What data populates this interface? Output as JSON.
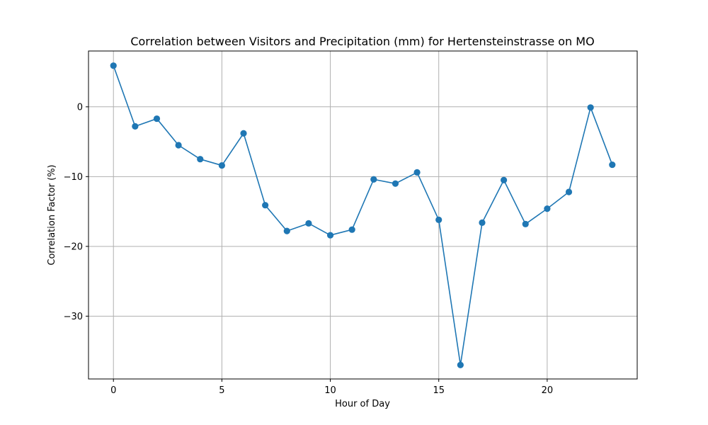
{
  "chart_data": {
    "type": "line",
    "title": "Correlation between Visitors and Precipitation (mm) for Hertensteinstrasse on MO",
    "xlabel": "Hour of Day",
    "ylabel": "Correlation Factor (%)",
    "xlim": [
      -1.15,
      24.15
    ],
    "ylim": [
      -39,
      8
    ],
    "xticks": [
      0,
      5,
      10,
      15,
      20
    ],
    "yticks": [
      -30,
      -20,
      -10,
      0
    ],
    "ytick_labels": [
      "−30",
      "−20",
      "−10",
      "0"
    ],
    "grid": true,
    "line_color": "#1f77b4",
    "series": [
      {
        "x": [
          0,
          1,
          2,
          3,
          4,
          5,
          6,
          7,
          8,
          9,
          10,
          11,
          12,
          13,
          14,
          15,
          16,
          17,
          18,
          19,
          20,
          21,
          22,
          23
        ],
        "values": [
          5.9,
          -2.8,
          -1.7,
          -5.5,
          -7.5,
          -8.4,
          -3.8,
          -14.1,
          -17.8,
          -16.7,
          -18.4,
          -17.6,
          -10.4,
          -11.0,
          -9.4,
          -16.2,
          -37.0,
          -16.6,
          -10.5,
          -16.8,
          -14.6,
          -12.2,
          -0.1,
          -8.3
        ]
      }
    ]
  }
}
